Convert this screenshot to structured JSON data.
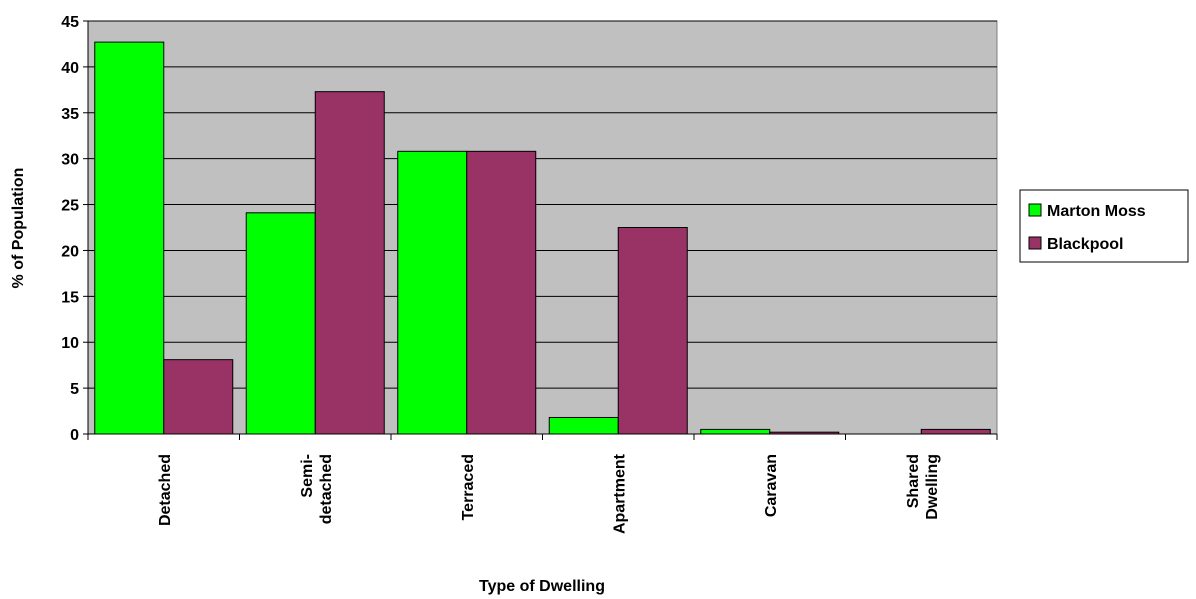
{
  "chart_data": {
    "type": "bar",
    "title": "",
    "xlabel": "Type of Dwelling",
    "ylabel": "% of Population",
    "ylim": [
      0,
      45
    ],
    "ytick_step": 5,
    "grid": true,
    "legend_position": "right",
    "categories": [
      [
        "Detached"
      ],
      [
        "Semi-",
        "detached"
      ],
      [
        "Terraced"
      ],
      [
        "Apartment"
      ],
      [
        "Caravan"
      ],
      [
        "Shared",
        "Dwelling"
      ]
    ],
    "series": [
      {
        "name": "Marton Moss",
        "color": "#00ff00",
        "values": [
          42.7,
          24.1,
          30.8,
          1.8,
          0.5,
          0
        ]
      },
      {
        "name": "Blackpool",
        "color": "#993366",
        "values": [
          8.1,
          37.3,
          30.8,
          22.5,
          0.2,
          0.5
        ]
      }
    ],
    "plot_background": "#c0c0c0"
  }
}
